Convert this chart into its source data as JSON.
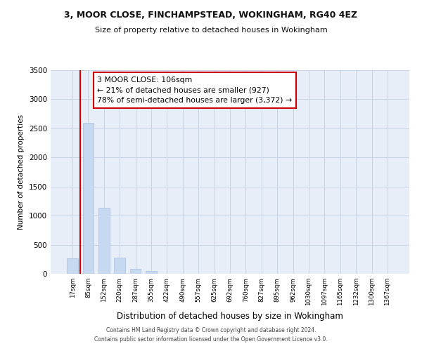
{
  "title1": "3, MOOR CLOSE, FINCHAMPSTEAD, WOKINGHAM, RG40 4EZ",
  "title2": "Size of property relative to detached houses in Wokingham",
  "xlabel": "Distribution of detached houses by size in Wokingham",
  "ylabel": "Number of detached properties",
  "bar_labels": [
    "17sqm",
    "85sqm",
    "152sqm",
    "220sqm",
    "287sqm",
    "355sqm",
    "422sqm",
    "490sqm",
    "557sqm",
    "625sqm",
    "692sqm",
    "760sqm",
    "827sqm",
    "895sqm",
    "962sqm",
    "1030sqm",
    "1097sqm",
    "1165sqm",
    "1232sqm",
    "1300sqm",
    "1367sqm"
  ],
  "bar_values": [
    270,
    2600,
    1130,
    280,
    90,
    50,
    0,
    0,
    0,
    0,
    0,
    0,
    0,
    0,
    0,
    0,
    0,
    0,
    0,
    0,
    0
  ],
  "bar_color": "#c6d9f0",
  "bar_edge_color": "#aabfdb",
  "grid_color": "#c8d4e8",
  "background_color": "#e8eef8",
  "ylim": [
    0,
    3500
  ],
  "yticks": [
    0,
    500,
    1000,
    1500,
    2000,
    2500,
    3000,
    3500
  ],
  "vline_color": "#cc0000",
  "annotation_line1": "3 MOOR CLOSE: 106sqm",
  "annotation_line2": "← 21% of detached houses are smaller (927)",
  "annotation_line3": "78% of semi-detached houses are larger (3,372) →",
  "annotation_box_color": "#ffffff",
  "annotation_box_edge_color": "#cc0000",
  "footer1": "Contains HM Land Registry data © Crown copyright and database right 2024.",
  "footer2": "Contains public sector information licensed under the Open Government Licence v3.0."
}
